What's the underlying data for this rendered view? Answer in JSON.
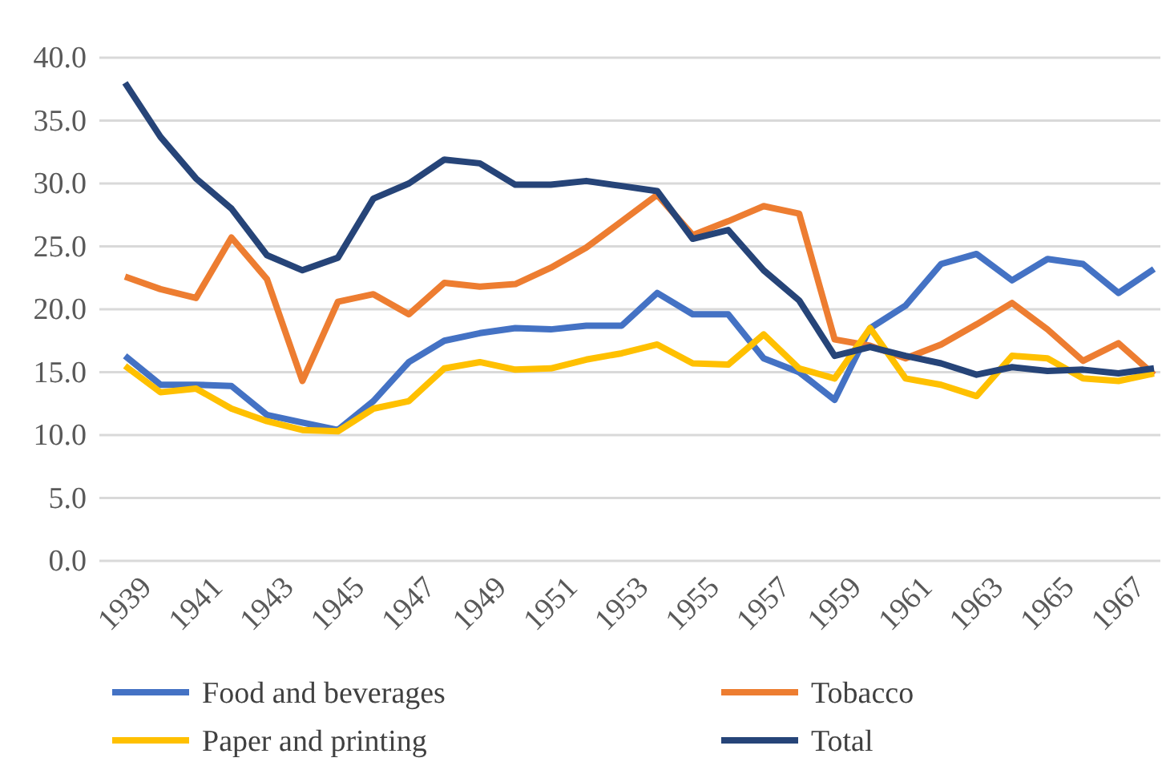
{
  "chart_data": {
    "type": "line",
    "categories": [
      "1939",
      null,
      "1941",
      null,
      "1943",
      null,
      "1945",
      null,
      "1947",
      null,
      "1949",
      null,
      "1951",
      null,
      "1953",
      null,
      "1955",
      null,
      "1957",
      null,
      "1959",
      null,
      "1961",
      null,
      "1963",
      null,
      "1965",
      null,
      "1967",
      null
    ],
    "series": [
      {
        "name": "Food and beverages",
        "color": "#4472c4",
        "values": [
          16.3,
          14.0,
          14.0,
          13.9,
          11.6,
          11.0,
          10.4,
          12.7,
          15.8,
          17.5,
          18.1,
          18.5,
          18.4,
          18.7,
          18.7,
          21.3,
          19.6,
          19.6,
          16.1,
          15.0,
          12.8,
          18.5,
          20.3,
          23.6,
          24.4,
          22.3,
          24.0,
          23.6,
          21.3,
          23.2
        ]
      },
      {
        "name": "Tobacco",
        "color": "#ed7d31",
        "values": [
          22.6,
          21.6,
          20.9,
          25.7,
          22.4,
          14.3,
          20.6,
          21.2,
          19.6,
          22.1,
          21.8,
          22.0,
          23.3,
          24.9,
          27.0,
          29.1,
          25.9,
          27.0,
          28.2,
          27.6,
          17.6,
          17.1,
          16.1,
          17.2,
          18.8,
          20.5,
          18.4,
          15.9,
          17.3,
          14.8
        ]
      },
      {
        "name": "Paper and printing",
        "color": "#ffc000",
        "values": [
          15.5,
          13.4,
          13.7,
          12.1,
          11.1,
          10.4,
          10.3,
          12.1,
          12.7,
          15.3,
          15.8,
          15.2,
          15.3,
          16.0,
          16.5,
          17.2,
          15.7,
          15.6,
          18.0,
          15.3,
          14.5,
          18.5,
          14.5,
          14.0,
          13.1,
          16.3,
          16.1,
          14.5,
          14.3,
          14.9
        ]
      },
      {
        "name": "Total",
        "color": "#264478",
        "values": [
          38.0,
          33.7,
          30.4,
          28.0,
          24.3,
          23.1,
          24.1,
          28.8,
          30.0,
          31.9,
          31.6,
          29.9,
          29.9,
          30.2,
          29.8,
          29.4,
          25.6,
          26.3,
          23.1,
          20.7,
          16.3,
          17.0,
          16.3,
          15.7,
          14.8,
          15.4,
          15.1,
          15.2,
          14.9,
          15.3
        ]
      }
    ],
    "ylim": [
      0,
      40
    ],
    "yticks": [
      {
        "value": 0,
        "label": "0.0"
      },
      {
        "value": 5,
        "label": "5.0"
      },
      {
        "value": 10,
        "label": "10.0"
      },
      {
        "value": 15,
        "label": "15.0"
      },
      {
        "value": 20,
        "label": "20.0"
      },
      {
        "value": 25,
        "label": "25.0"
      },
      {
        "value": 30,
        "label": "30.0"
      },
      {
        "value": 35,
        "label": "35.0"
      },
      {
        "value": 40,
        "label": "40.0"
      }
    ],
    "grid": "y",
    "legend": "bottom",
    "marker": "none",
    "line_style": "solid"
  }
}
